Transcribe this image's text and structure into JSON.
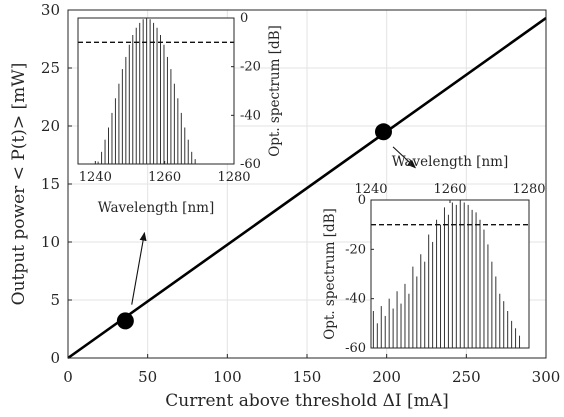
{
  "chart_data": [
    {
      "type": "line",
      "title": "",
      "xlabel": "Current above threshold ΔI [mA]",
      "ylabel": "Output power < P(t)> [mW]",
      "xlim": [
        0,
        300
      ],
      "ylim": [
        0,
        30
      ],
      "xticks": [
        "0",
        "50",
        "100",
        "150",
        "200",
        "250",
        "300"
      ],
      "yticks": [
        "0",
        "5",
        "10",
        "15",
        "20",
        "25",
        "30"
      ],
      "grid": true,
      "series": [
        {
          "x": [
            0,
            300
          ],
          "y": [
            0,
            29.3
          ]
        }
      ],
      "markers": [
        {
          "x": 36,
          "y": 3.2
        },
        {
          "x": 198,
          "y": 19.5
        }
      ],
      "arrows": [
        {
          "from": [
            40,
            4.6
          ],
          "to": [
            48,
            10.8
          ]
        },
        {
          "from": [
            204,
            18.2
          ],
          "to": [
            218,
            16.4
          ]
        }
      ]
    },
    {
      "type": "bar",
      "xlabel": "Wavelength [nm]",
      "ylabel": "Opt. spectrum [dB]",
      "xlim": [
        1235,
        1280
      ],
      "ylim": [
        -60,
        0
      ],
      "xticks": [
        "1240",
        "1260",
        "1280"
      ],
      "yticks": [
        "0",
        "-20",
        "-40",
        "-60"
      ],
      "y_axis_side": "right",
      "threshold_db": -10,
      "x": [
        1240.8,
        1241.8,
        1242.8,
        1243.8,
        1244.8,
        1245.8,
        1246.8,
        1247.8,
        1248.8,
        1249.8,
        1250.8,
        1251.8,
        1252.8,
        1253.8,
        1254.8,
        1255.8,
        1256.8,
        1257.8,
        1258.8,
        1259.8,
        1260.8,
        1261.8,
        1262.8,
        1263.8,
        1264.8,
        1265.8,
        1266.8,
        1267.8,
        1268.8,
        1269.8
      ],
      "values": [
        -59,
        -55,
        -50,
        -45,
        -39,
        -33,
        -27,
        -21,
        -16,
        -11,
        -7,
        -4,
        -2,
        -0.5,
        0,
        -0.5,
        -2,
        -4,
        -7,
        -11,
        -16,
        -21,
        -27,
        -33,
        -39,
        -45,
        -50,
        -55,
        -58,
        -60
      ]
    },
    {
      "type": "bar",
      "xlabel": "Wavelength [nm]",
      "ylabel": "Opt. spectrum [dB]",
      "xlim": [
        1240,
        1280
      ],
      "ylim": [
        -60,
        0
      ],
      "xticks": [
        "1240",
        "1260",
        "1280"
      ],
      "yticks": [
        "0",
        "-20",
        "-40",
        "-60"
      ],
      "x_axis_side": "top",
      "threshold_db": -10,
      "x": [
        1240.6,
        1241.6,
        1242.6,
        1243.6,
        1244.6,
        1245.6,
        1246.6,
        1247.6,
        1248.6,
        1249.6,
        1250.6,
        1251.6,
        1252.6,
        1253.6,
        1254.6,
        1255.6,
        1256.6,
        1257.6,
        1258.6,
        1259.6,
        1260.6,
        1261.6,
        1262.6,
        1263.6,
        1264.6,
        1265.6,
        1266.6,
        1267.6,
        1268.6,
        1269.6,
        1270.6,
        1271.6,
        1272.6,
        1273.6,
        1274.6,
        1275.6,
        1276.6,
        1277.6
      ],
      "values": [
        -45,
        -50,
        -43,
        -47,
        -40,
        -44,
        -37,
        -42,
        -34,
        -38,
        -27,
        -31,
        -22,
        -25,
        -14,
        -17,
        -8,
        -10,
        -3,
        -6,
        -1,
        -2,
        0,
        -1,
        -2,
        -4,
        -5,
        -8,
        -12,
        -18,
        -25,
        -31,
        -38,
        -41,
        -45,
        -49,
        -52,
        -55
      ]
    }
  ]
}
